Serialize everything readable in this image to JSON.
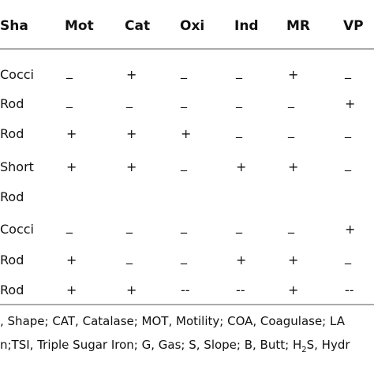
{
  "table": {
    "header": [
      "Sha",
      "Mot",
      "Cat",
      "Oxi",
      "Ind",
      "MR",
      "VP"
    ],
    "rows": [
      [
        "Cocci",
        "_",
        "+",
        "_",
        "_",
        "+",
        "_"
      ],
      [
        "Rod",
        "_",
        "_",
        "_",
        "_",
        "_",
        "+"
      ],
      [
        "Rod",
        "+",
        "+",
        "+",
        "_",
        "_",
        "_"
      ],
      [
        "Short",
        "+",
        "+",
        "_",
        "+",
        "+",
        "_"
      ],
      [
        "Rod"
      ],
      [
        "Cocci",
        "_",
        "_",
        "_",
        "_",
        "_",
        "+"
      ],
      [
        "Rod",
        "+",
        "_",
        "_",
        "+",
        "+",
        "_"
      ],
      [
        "Rod",
        "+",
        "+",
        "--",
        "--",
        "+",
        "--"
      ]
    ]
  },
  "footnote": [
    [
      ", Shape; CAT, Catalase; MOT, Motility; COA, Coagulase; LA"
    ],
    [
      "n;TSI, Triple Sugar Iron; G, Gas; S, Slope; B, Butt; H",
      "2",
      "S, Hydr"
    ]
  ]
}
